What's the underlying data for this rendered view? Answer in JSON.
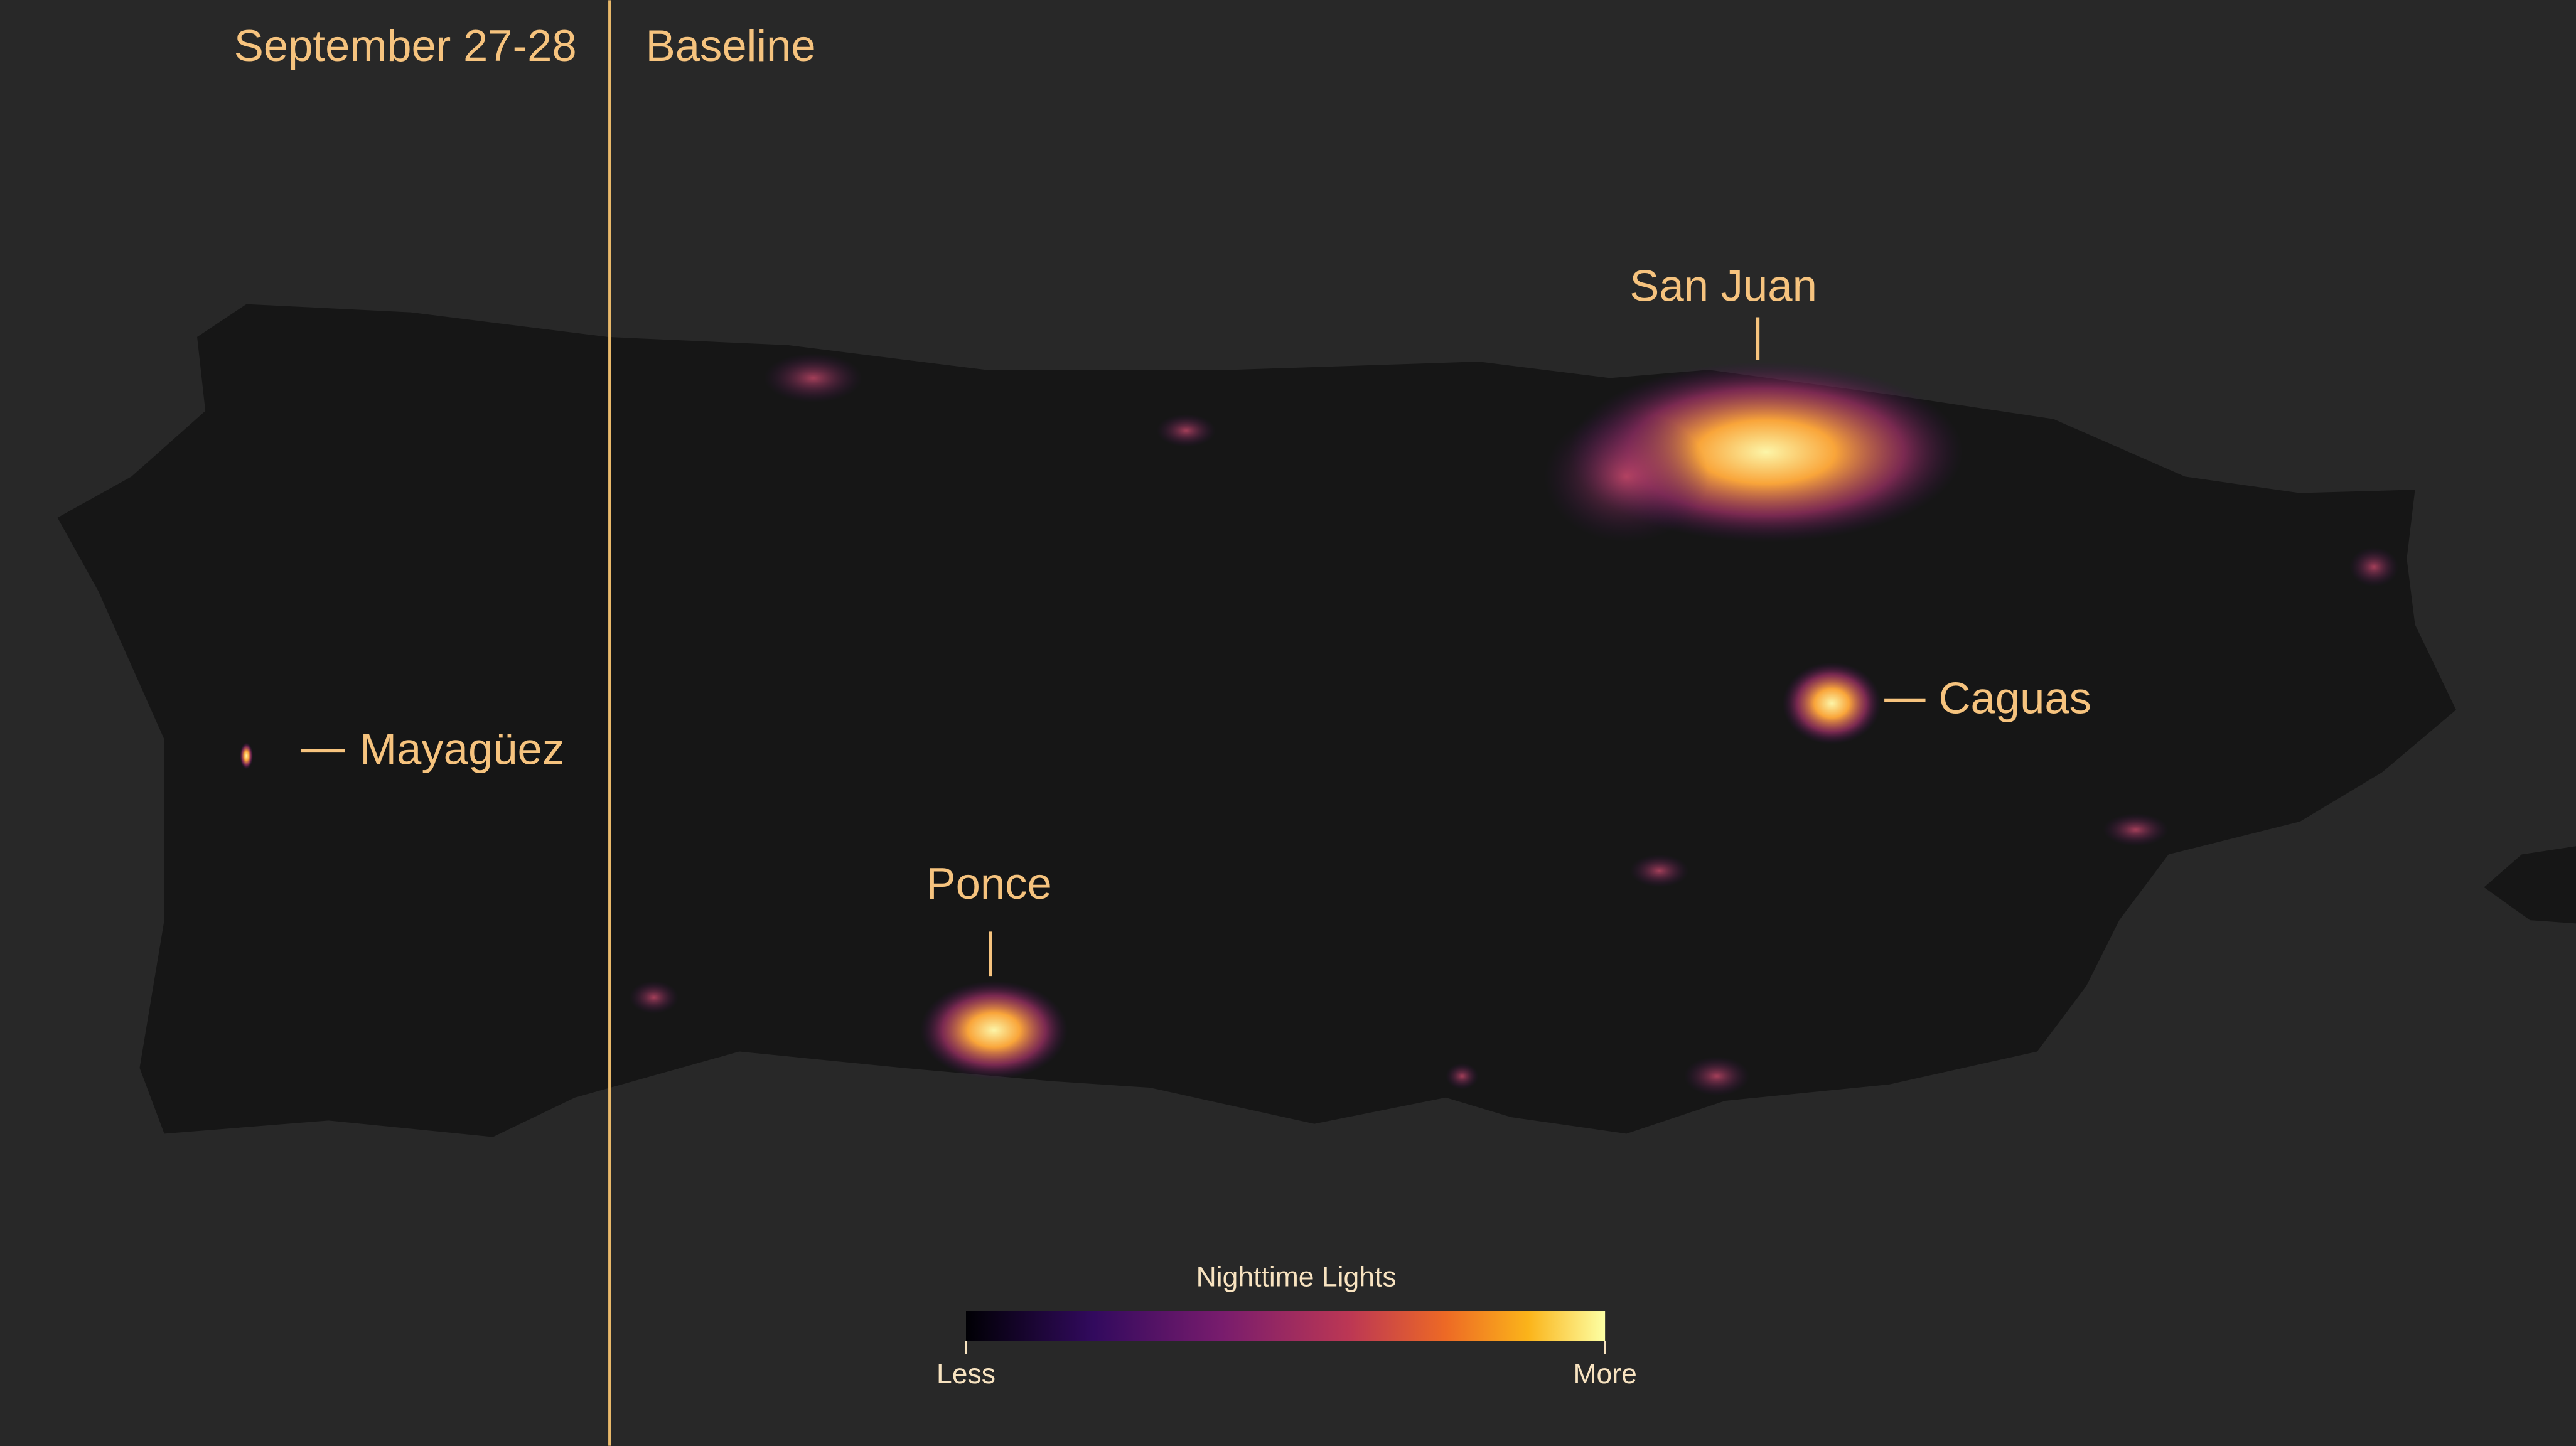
{
  "panels": {
    "left": "September 27-28",
    "right": "Baseline"
  },
  "places": [
    "San Juan",
    "Caguas",
    "Ponce",
    "Mayagüez"
  ],
  "legend": {
    "title": "Nighttime Lights",
    "low": "Less",
    "high": "More"
  }
}
